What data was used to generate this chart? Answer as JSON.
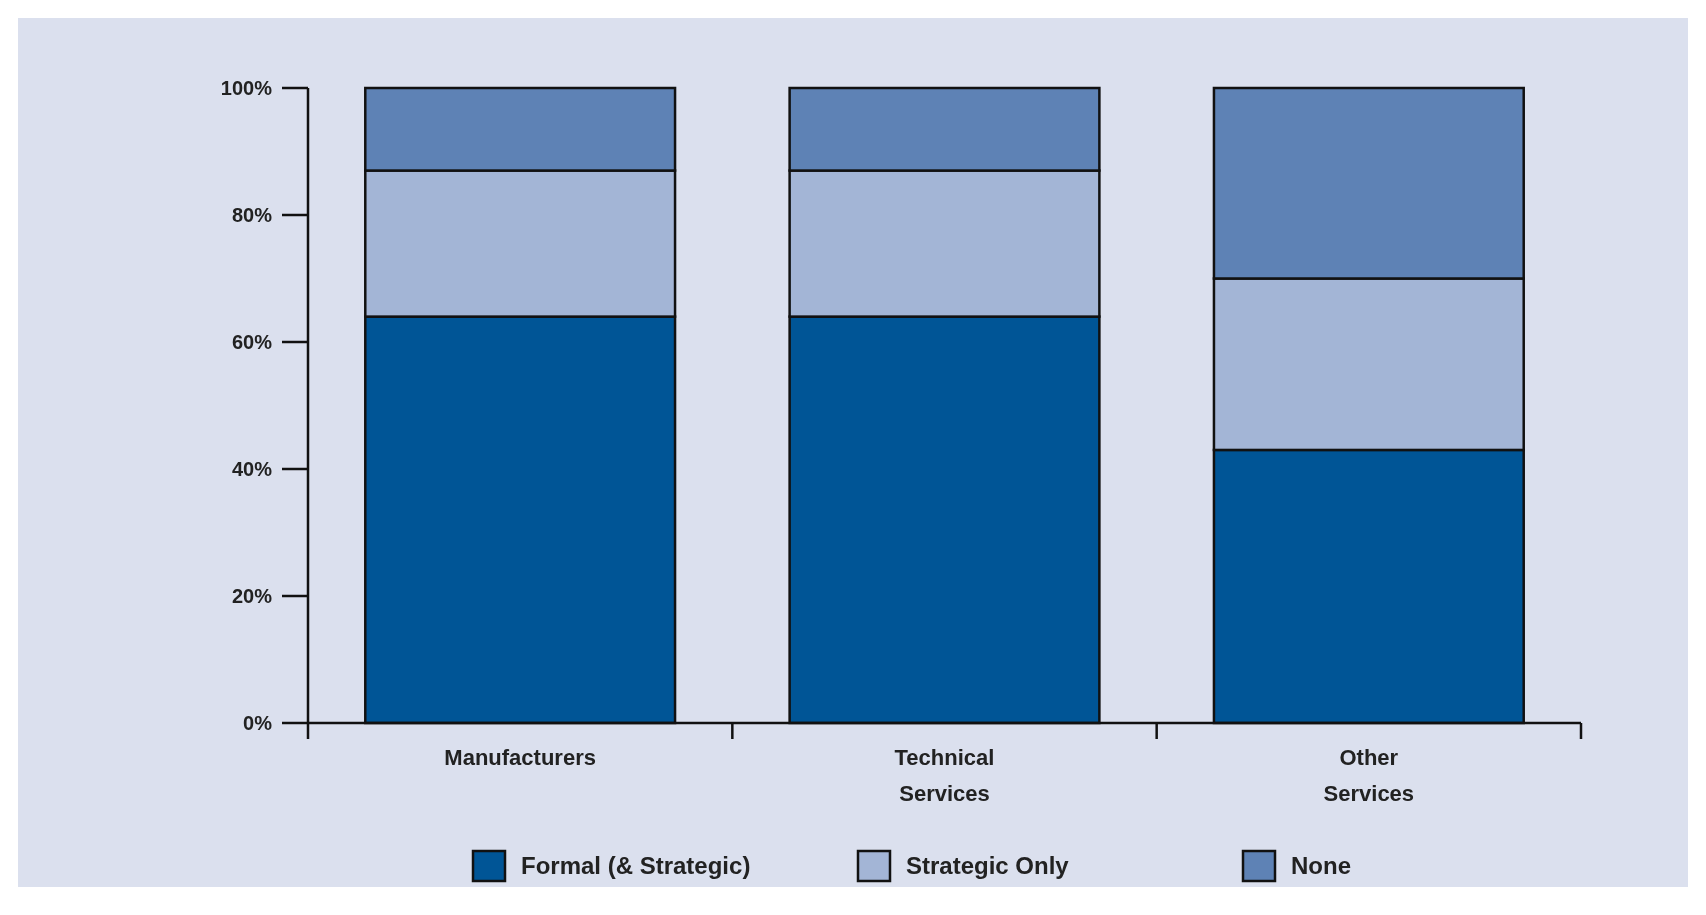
{
  "chart_data": {
    "type": "bar",
    "stacked": true,
    "categories": [
      "Manufacturers",
      "Technical Services",
      "Other Services"
    ],
    "series": [
      {
        "name": "Formal (& Strategic)",
        "color": "#005596",
        "values": [
          64,
          64,
          43
        ]
      },
      {
        "name": "Strategic Only",
        "color": "#a3b5d6",
        "values": [
          23,
          23,
          27
        ]
      },
      {
        "name": "None",
        "color": "#5e82b5",
        "values": [
          13,
          13,
          30
        ]
      }
    ],
    "ylim": [
      0,
      100
    ],
    "yticks": [
      {
        "value": 0,
        "label": "0%"
      },
      {
        "value": 20,
        "label": "20%"
      },
      {
        "value": 40,
        "label": "40%"
      },
      {
        "value": 60,
        "label": "60%"
      },
      {
        "value": 80,
        "label": "80%"
      },
      {
        "value": 100,
        "label": "100%"
      }
    ],
    "grid": false,
    "legend": "bottom"
  }
}
